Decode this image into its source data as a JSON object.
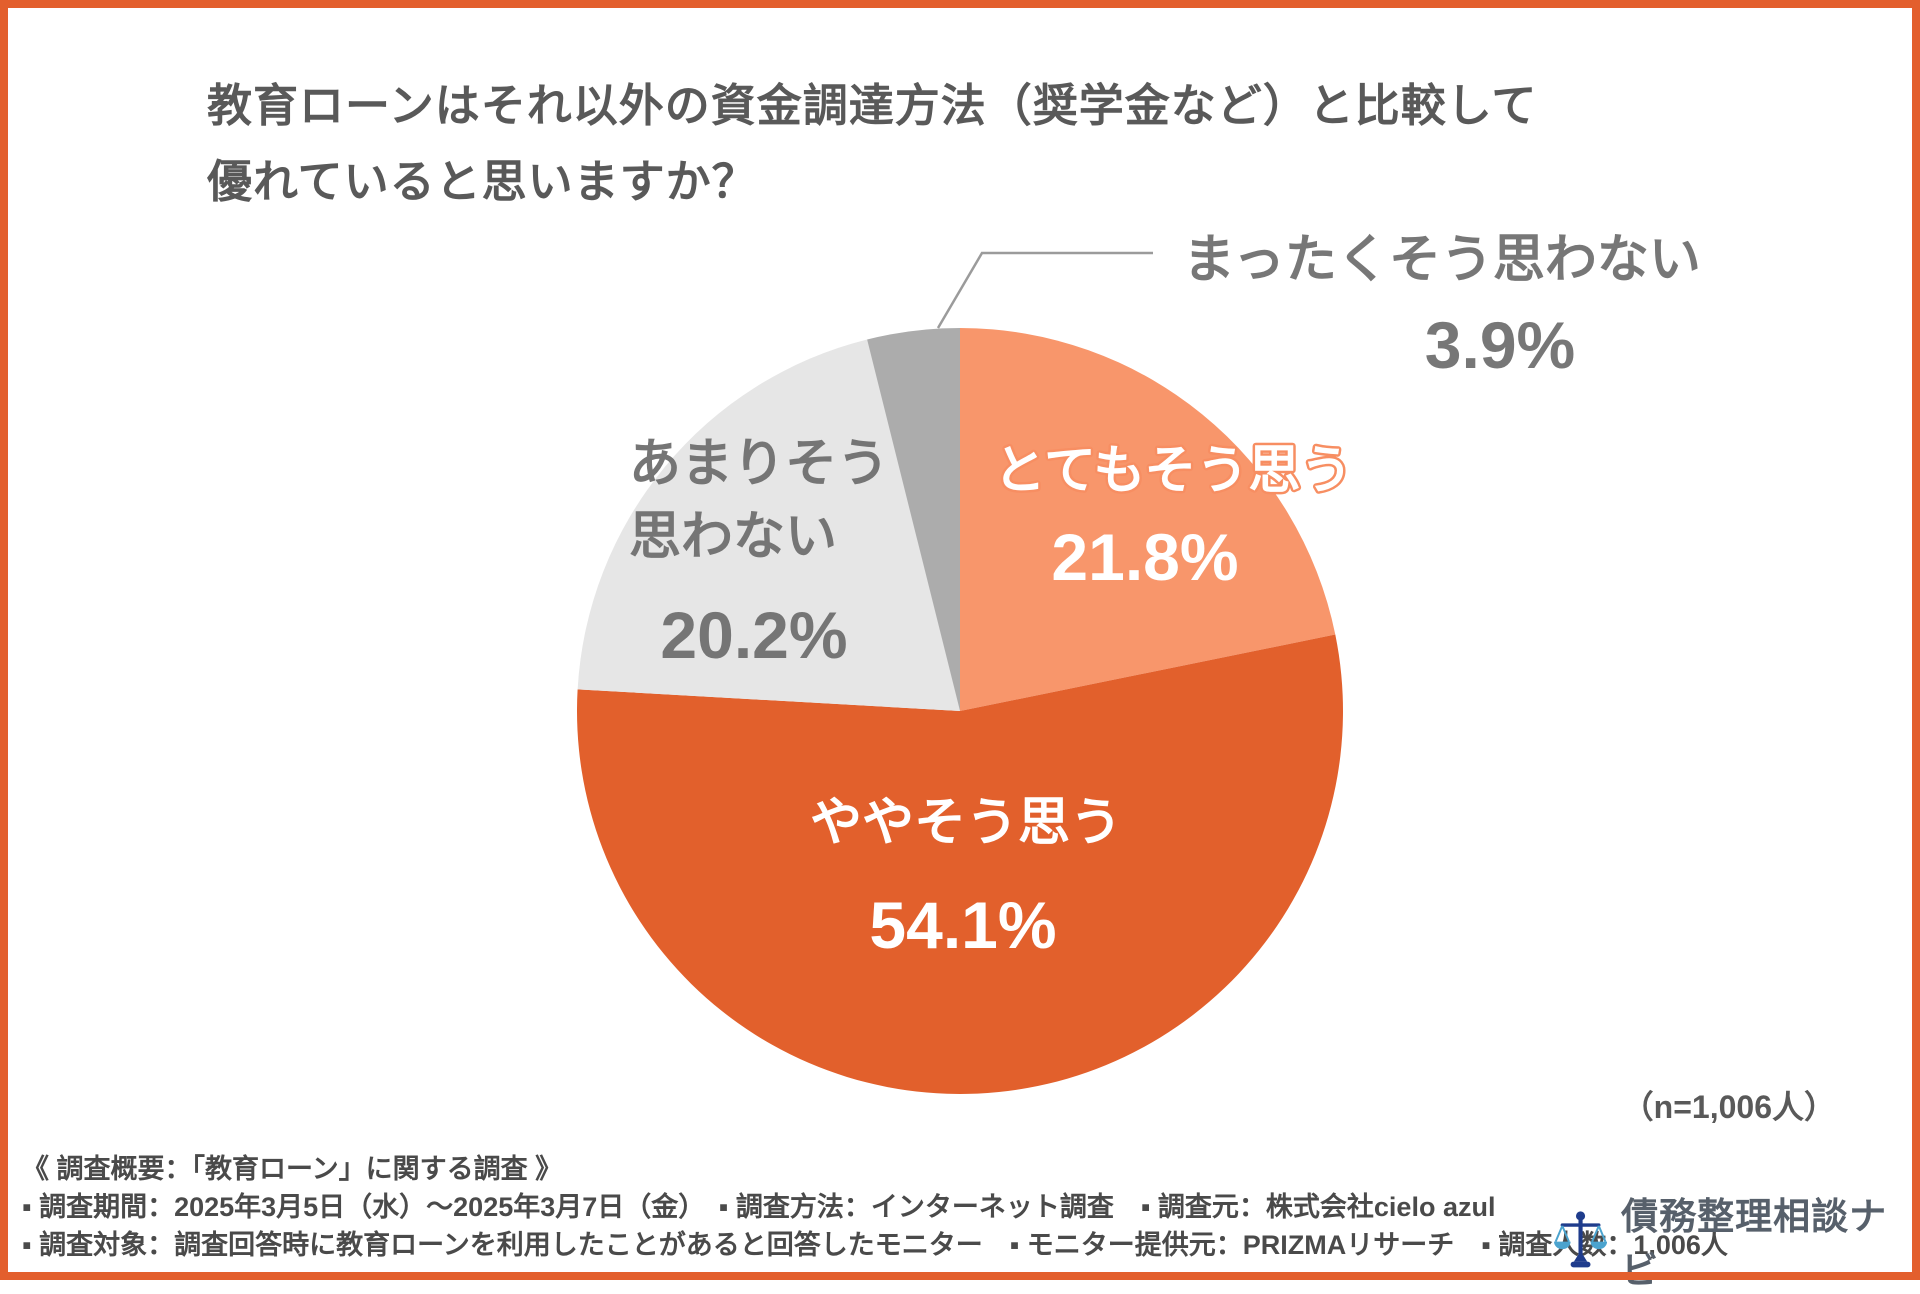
{
  "title": {
    "line1": "教育ローンはそれ以外の資金調達方法（奨学金など）と比較して",
    "line2": "優れていると思いますか？"
  },
  "sample_note": "（n=1,006人）",
  "chart_data": {
    "type": "pie",
    "title": "教育ローンはそれ以外の資金調達方法（奨学金など）と比較して優れていると思いますか？",
    "unit": "%",
    "n": 1006,
    "direction": "clockwise",
    "start_angle_deg": 0,
    "legend_position": "labels-on-chart",
    "slices": [
      {
        "label": "とてもそう思う",
        "value": 21.8,
        "display": "21.8%",
        "color": "#F8966B",
        "label_color": "#FFFFFF"
      },
      {
        "label": "ややそう思う",
        "value": 54.1,
        "display": "54.1%",
        "color": "#E2602C",
        "label_color": "#FFFFFF"
      },
      {
        "label": "あまりそう思わない",
        "label_lines": [
          "あまりそう",
          "思わない"
        ],
        "value": 20.2,
        "display": "20.2%",
        "color": "#E6E6E6",
        "label_color": "#757575"
      },
      {
        "label": "まったくそう思わない",
        "value": 3.9,
        "display": "3.9%",
        "color": "#ACACAC",
        "label_color": "#777777"
      }
    ]
  },
  "footer": {
    "line1": "《 調査概要：「教育ローン」に関する調査 》",
    "line2": "▪ 調査期間：2025年3月5日（水）～2025年3月7日（金）　▪ 調査方法：インターネット調査　▪ 調査元：株式会社cielo azul",
    "line3": "▪ 調査対象：調査回答時に教育ローンを利用したことがあると回答したモニター　▪ モニター提供元：PRIZMAリサーチ　▪ 調査人数：1,006人"
  },
  "logo": {
    "text": "債務整理相談ナビ",
    "icon": "scales-of-justice-icon"
  },
  "colors": {
    "frame": "#E35F2D",
    "leader_line": "#9B9B9B",
    "title_text": "#595959",
    "footer_text": "#4A4A4A",
    "label_outline": "#F78E62"
  }
}
